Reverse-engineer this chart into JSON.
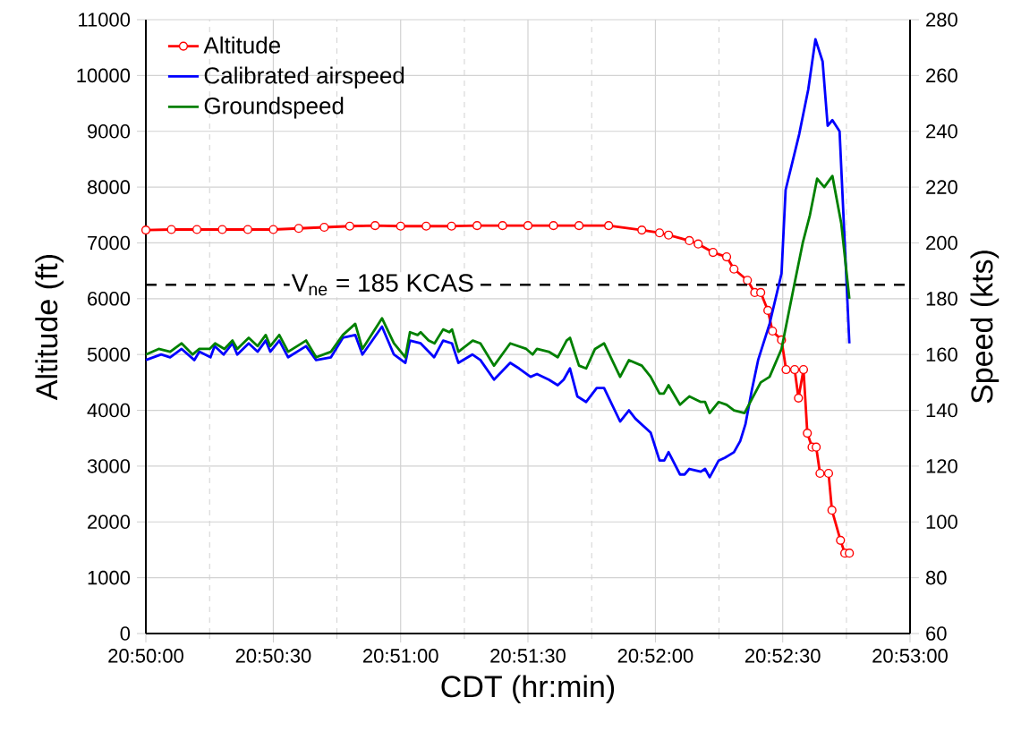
{
  "chart_data": {
    "type": "line",
    "xlabel": "CDT (hr:min)",
    "ylabel": "Altitude (ft)",
    "y2label": "Speed (kts)",
    "xlim": [
      20.83333,
      20.88333
    ],
    "xticks": [
      {
        "value": 20.83333,
        "label": "20:50:00"
      },
      {
        "value": 20.8375,
        "label": null
      },
      {
        "value": 20.84167,
        "label": "20:50:30"
      },
      {
        "value": 20.84583,
        "label": null
      },
      {
        "value": 20.85,
        "label": "20:51:00"
      },
      {
        "value": 20.85417,
        "label": null
      },
      {
        "value": 20.85833,
        "label": "20:51:30"
      },
      {
        "value": 20.8625,
        "label": null
      },
      {
        "value": 20.86667,
        "label": "20:52:00"
      },
      {
        "value": 20.87083,
        "label": null
      },
      {
        "value": 20.875,
        "label": "20:52:30"
      },
      {
        "value": 20.87917,
        "label": null
      },
      {
        "value": 20.88333,
        "label": "20:53:00"
      }
    ],
    "ylim": [
      0,
      11000
    ],
    "yticks": [
      0,
      1000,
      2000,
      3000,
      4000,
      5000,
      6000,
      7000,
      8000,
      9000,
      10000,
      11000
    ],
    "y2lim": [
      60,
      280
    ],
    "y2ticks": [
      60,
      80,
      100,
      120,
      140,
      160,
      180,
      200,
      220,
      240,
      260,
      280
    ],
    "grid": true,
    "legend": "top left",
    "ref_lines": [
      {
        "axis": "y2",
        "value": 185,
        "label": "V$_{ne}$ = 185 KCAS",
        "line_style": "dashed",
        "color": "#000000"
      }
    ],
    "series": [
      {
        "name": "Altitude",
        "color": "#ff0000",
        "marker": "circle",
        "x": [
          20.83333,
          20.835,
          20.83667,
          20.83833,
          20.84,
          20.84167,
          20.84333,
          20.845,
          20.84667,
          20.84833,
          20.85,
          20.85167,
          20.85333,
          20.855,
          20.85667,
          20.85833,
          20.86,
          20.86167,
          20.86361,
          20.86578,
          20.86694,
          20.86753,
          20.86889,
          20.86947,
          20.87044,
          20.87133,
          20.87181,
          20.87269,
          20.87317,
          20.87356,
          20.87403,
          20.87433,
          20.87492,
          20.87522,
          20.87578,
          20.87603,
          20.87636,
          20.87661,
          20.87692,
          20.87719,
          20.87744,
          20.878,
          20.87822,
          20.87878,
          20.87906,
          20.87936
        ],
        "values": [
          7230,
          7240,
          7240,
          7240,
          7240,
          7240,
          7260,
          7280,
          7300,
          7310,
          7300,
          7300,
          7300,
          7310,
          7310,
          7310,
          7310,
          7310,
          7310,
          7230,
          7180,
          7140,
          7040,
          6980,
          6830,
          6750,
          6530,
          6330,
          6110,
          6110,
          5790,
          5420,
          5260,
          4730,
          4730,
          4220,
          4730,
          3590,
          3340,
          3340,
          2870,
          2870,
          2210,
          1670,
          1440,
          1440
        ]
      },
      {
        "name": "Calibrated airspeed",
        "color": "#0000ff",
        "axis": "y2",
        "x": [
          20.83333,
          20.83433,
          20.83492,
          20.83567,
          20.8365,
          20.83683,
          20.83756,
          20.83783,
          20.83842,
          20.839,
          20.83931,
          20.84006,
          20.84064,
          20.84117,
          20.84147,
          20.84206,
          20.84264,
          20.84381,
          20.84447,
          20.84544,
          20.84622,
          20.84703,
          20.8475,
          20.84878,
          20.84956,
          20.85031,
          20.85061,
          20.85131,
          20.85219,
          20.85278,
          20.85336,
          20.85378,
          20.85469,
          20.85522,
          20.85611,
          20.85717,
          20.85775,
          20.8585,
          20.85892,
          20.85969,
          20.86028,
          20.86067,
          20.86108,
          20.86156,
          20.86214,
          20.86283,
          20.86331,
          20.86436,
          20.86494,
          20.86536,
          20.86636,
          20.86694,
          20.86725,
          20.86753,
          20.86828,
          20.86858,
          20.86889,
          20.86964,
          20.86992,
          20.87022,
          20.87081,
          20.87122,
          20.87181,
          20.87222,
          20.87256,
          20.87297,
          20.87339,
          20.87414,
          20.87492,
          20.87519,
          20.87608,
          20.87667,
          20.87714,
          20.87761,
          20.87794,
          20.87825,
          20.87872,
          20.87936
        ],
        "values": [
          158,
          160,
          159,
          162,
          158,
          161,
          159,
          163,
          160,
          164,
          160,
          164,
          161,
          165,
          161,
          165,
          159,
          163,
          158,
          159,
          166,
          167,
          160,
          170,
          160,
          157,
          165,
          164,
          159,
          165,
          164,
          157,
          160,
          158,
          151,
          157,
          155,
          152,
          153,
          151,
          149,
          151,
          155,
          145,
          143,
          148,
          148,
          136,
          140,
          137,
          132,
          122,
          122,
          125,
          117,
          117,
          119,
          118,
          119,
          116,
          122,
          123,
          125,
          129,
          135,
          147,
          158,
          171,
          189,
          219,
          239,
          255,
          273,
          265,
          242,
          244,
          240,
          164
        ]
      },
      {
        "name": "Groundspeed",
        "color": "#008000",
        "axis": "y2",
        "x": [
          20.83333,
          20.83417,
          20.83492,
          20.83567,
          20.83639,
          20.83683,
          20.8375,
          20.83786,
          20.83847,
          20.839,
          20.83931,
          20.84006,
          20.84064,
          20.84117,
          20.84147,
          20.84206,
          20.84264,
          20.84381,
          20.84447,
          20.84544,
          20.84622,
          20.84703,
          20.8475,
          20.84878,
          20.84956,
          20.85031,
          20.85061,
          20.85111,
          20.85131,
          20.85183,
          20.85222,
          20.85278,
          20.85319,
          20.85336,
          20.85378,
          20.85472,
          20.85522,
          20.85611,
          20.85717,
          20.85822,
          20.85864,
          20.85892,
          20.85969,
          20.86028,
          20.86086,
          20.86108,
          20.86167,
          20.86214,
          20.86272,
          20.86331,
          20.86436,
          20.86494,
          20.86578,
          20.86636,
          20.86694,
          20.86722,
          20.86753,
          20.86828,
          20.86889,
          20.86964,
          20.86992,
          20.87022,
          20.87081,
          20.87133,
          20.87181,
          20.8725,
          20.87317,
          20.87356,
          20.87414,
          20.87492,
          20.87572,
          20.87631,
          20.87678,
          20.87725,
          20.87772,
          20.87825,
          20.87883,
          20.87936
        ],
        "values": [
          160,
          162,
          161,
          164,
          160,
          162,
          162,
          164,
          162,
          165,
          162,
          166,
          163,
          167,
          163,
          167,
          161,
          165,
          159,
          161,
          167,
          171,
          162,
          173,
          164,
          159,
          168,
          167,
          168,
          165,
          164,
          169,
          168,
          169,
          161,
          165,
          164,
          156,
          164,
          162,
          160,
          162,
          161,
          159,
          165,
          166,
          156,
          155,
          162,
          164,
          152,
          158,
          156,
          152,
          146,
          146,
          149,
          142,
          145,
          143,
          143,
          139,
          143,
          142,
          140,
          139,
          146,
          150,
          152,
          162,
          184,
          200,
          210,
          223,
          220,
          224,
          207,
          180
        ]
      }
    ]
  }
}
